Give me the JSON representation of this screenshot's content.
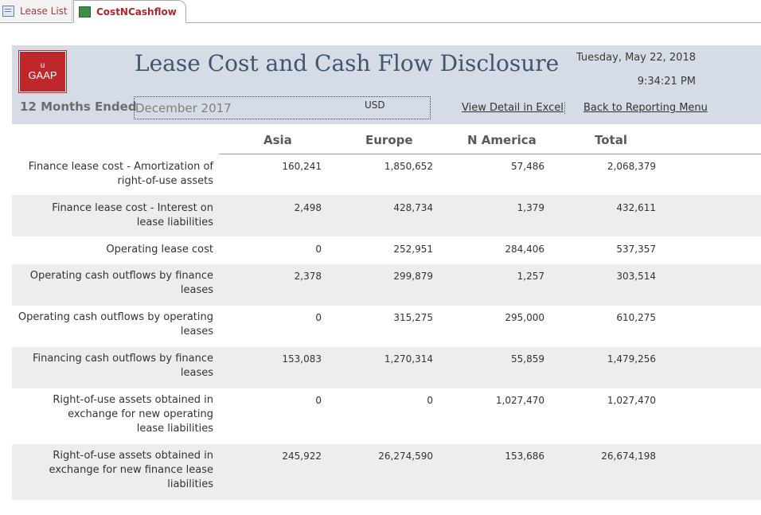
{
  "tabs": [
    {
      "label": "Lease List",
      "icon": "form-icon"
    },
    {
      "label": "CostNCashflow",
      "icon": "report-icon"
    }
  ],
  "header": {
    "logo_top": "u",
    "logo_bottom": "GAAP",
    "title": "Lease Cost and Cash Flow Disclosure",
    "date": "Tuesday, May 22, 2018",
    "time": "9:34:21 PM",
    "period_label": "12 Months Ended",
    "period_value": "December 2017",
    "currency": "USD",
    "excel_link": "View Detail in Excel",
    "menu_link": "Back to Reporting Menu"
  },
  "columns": [
    "Asia",
    "Europe",
    "N America",
    "Total"
  ],
  "rows": [
    {
      "label": "Finance lease cost - Amortization of right-of-use assets",
      "values": [
        "160,241",
        "1,850,652",
        "57,486",
        "2,068,379"
      ]
    },
    {
      "label": "Finance lease cost - Interest on lease liabilities",
      "values": [
        "2,498",
        "428,734",
        "1,379",
        "432,611"
      ]
    },
    {
      "label": "Operating lease cost",
      "values": [
        "0",
        "252,951",
        "284,406",
        "537,357"
      ]
    },
    {
      "label": "Operating cash outflows by finance leases",
      "values": [
        "2,378",
        "299,879",
        "1,257",
        "303,514"
      ]
    },
    {
      "label": "Operating cash outflows by operating leases",
      "values": [
        "0",
        "315,275",
        "295,000",
        "610,275"
      ]
    },
    {
      "label": "Financing cash outflows by finance leases",
      "values": [
        "153,083",
        "1,270,314",
        "55,859",
        "1,479,256"
      ]
    },
    {
      "label": "Right-of-use assets obtained in exchange for new operating lease liabilities",
      "values": [
        "0",
        "0",
        "1,027,470",
        "1,027,470"
      ]
    },
    {
      "label": "Right-of-use assets obtained in exchange for new finance lease liabilities",
      "values": [
        "245,922",
        "26,274,590",
        "153,686",
        "26,674,198"
      ]
    }
  ]
}
